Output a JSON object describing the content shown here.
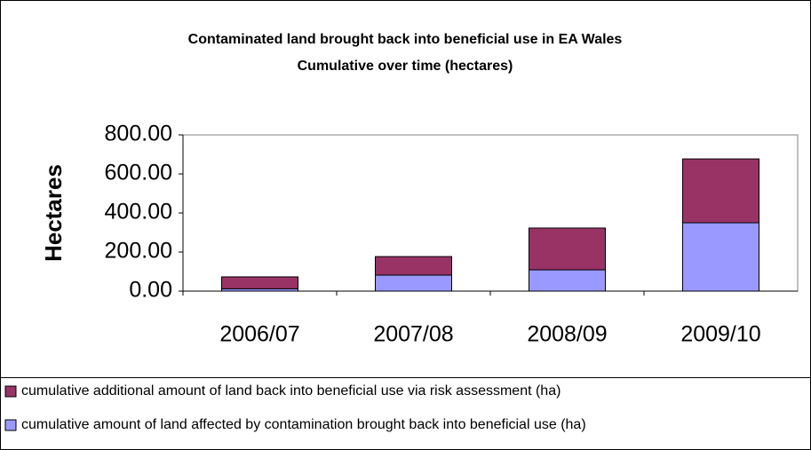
{
  "chart_data": {
    "type": "stacked_bar",
    "title": "Contaminated land brought back into beneficial use in EA Wales",
    "subtitle": "Cumulative over time (hectares)",
    "y_label": "Hectares",
    "categories": [
      "2006/07",
      "2007/08",
      "2008/09",
      "2009/10"
    ],
    "series": [
      {
        "name": "cumulative amount of land affected by contamination brought back into beneficial use (ha)",
        "color": "#9999ff",
        "values": [
          12,
          82,
          109,
          350
        ]
      },
      {
        "name": "cumulative additional amount of land back into beneficial use via risk assessment (ha)",
        "color": "#993366",
        "values": [
          61,
          95,
          214,
          327
        ]
      }
    ],
    "ylim": [
      0,
      800
    ],
    "yticks": [
      {
        "value": 0,
        "label": "0.00"
      },
      {
        "value": 200,
        "label": "200.00"
      },
      {
        "value": 400,
        "label": "400.00"
      },
      {
        "value": 600,
        "label": "600.00"
      },
      {
        "value": 800,
        "label": "800.00"
      }
    ],
    "grid": false,
    "legend": "bottom"
  }
}
